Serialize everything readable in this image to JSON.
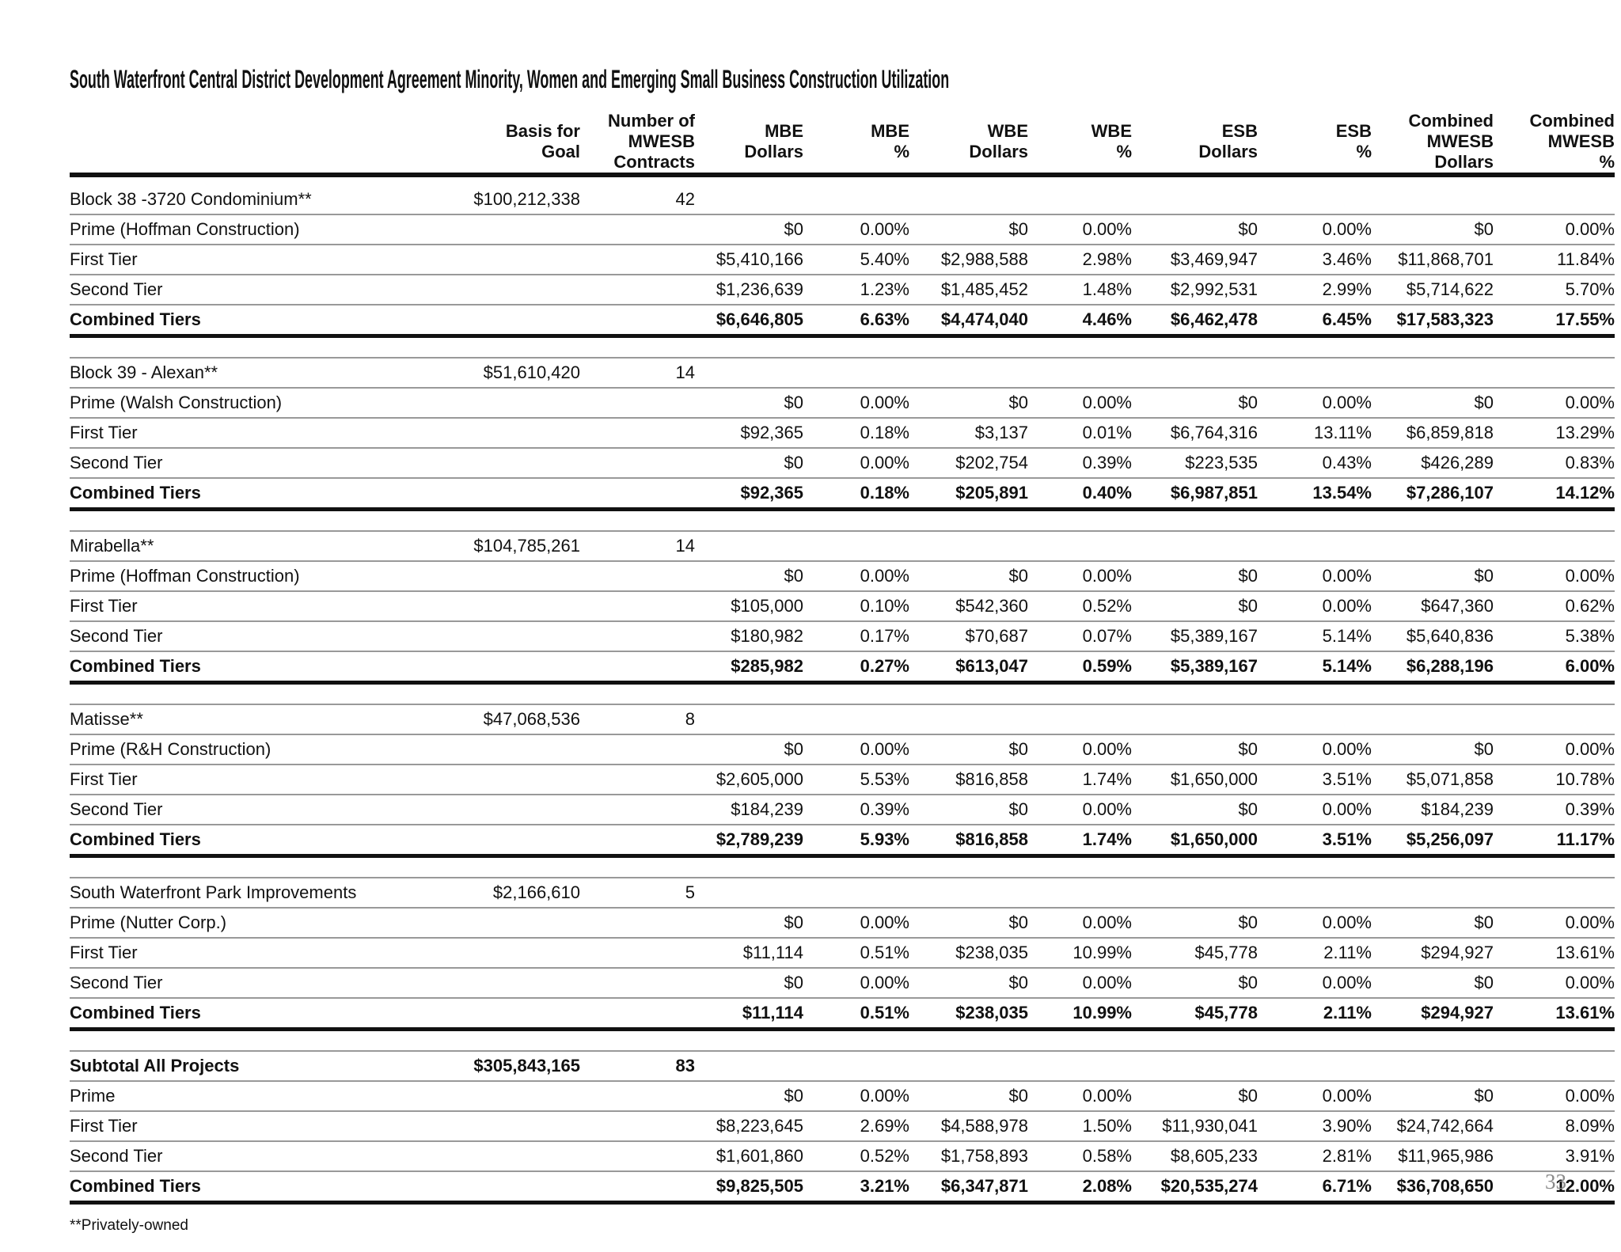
{
  "page": {
    "title": "South Waterfront Central District Development Agreement Minority, Women and Emerging Small Business Construction Utilization",
    "footnote": "**Privately-owned",
    "page_number": "33"
  },
  "colors": {
    "rule_dark": "#111111",
    "rule_gray": "#999999",
    "page_number_gray": "#8a8a8a",
    "background": "#ffffff"
  },
  "columns": [
    {
      "id": "basis",
      "lines": [
        "Basis for",
        "Goal"
      ]
    },
    {
      "id": "contracts",
      "lines": [
        "Number of",
        "MWESB",
        "Contracts"
      ]
    },
    {
      "id": "mbe_dollars",
      "lines": [
        "MBE",
        "Dollars"
      ]
    },
    {
      "id": "mbe_pct",
      "lines": [
        "MBE",
        "%"
      ]
    },
    {
      "id": "wbe_dollars",
      "lines": [
        "WBE",
        "Dollars"
      ]
    },
    {
      "id": "wbe_pct",
      "lines": [
        "WBE",
        "%"
      ]
    },
    {
      "id": "esb_dollars",
      "lines": [
        "ESB",
        "Dollars"
      ]
    },
    {
      "id": "esb_pct",
      "lines": [
        "ESB",
        "%"
      ]
    },
    {
      "id": "combined_dollars",
      "lines": [
        "Combined",
        "MWESB",
        "Dollars"
      ]
    },
    {
      "id": "combined_pct",
      "lines": [
        "Combined",
        "MWESB",
        "%"
      ]
    }
  ],
  "projects": [
    {
      "name": "Block 38 -3720 Condominium**",
      "basis": "$100,212,338",
      "contracts": "42",
      "rows": [
        {
          "label": "Prime (Hoffman Construction)",
          "values": [
            "$0",
            "0.00%",
            "$0",
            "0.00%",
            "$0",
            "0.00%",
            "$0",
            "0.00%"
          ]
        },
        {
          "label": "First Tier",
          "values": [
            "$5,410,166",
            "5.40%",
            "$2,988,588",
            "2.98%",
            "$3,469,947",
            "3.46%",
            "$11,868,701",
            "11.84%"
          ]
        },
        {
          "label": "Second Tier",
          "values": [
            "$1,236,639",
            "1.23%",
            "$1,485,452",
            "1.48%",
            "$2,992,531",
            "2.99%",
            "$5,714,622",
            "5.70%"
          ]
        },
        {
          "label": "Combined Tiers",
          "values": [
            "$6,646,805",
            "6.63%",
            "$4,474,040",
            "4.46%",
            "$6,462,478",
            "6.45%",
            "$17,583,323",
            "17.55%"
          ]
        }
      ]
    },
    {
      "name": "Block 39 - Alexan**",
      "basis": "$51,610,420",
      "contracts": "14",
      "rows": [
        {
          "label": "Prime (Walsh Construction)",
          "values": [
            "$0",
            "0.00%",
            "$0",
            "0.00%",
            "$0",
            "0.00%",
            "$0",
            "0.00%"
          ]
        },
        {
          "label": "First Tier",
          "values": [
            "$92,365",
            "0.18%",
            "$3,137",
            "0.01%",
            "$6,764,316",
            "13.11%",
            "$6,859,818",
            "13.29%"
          ]
        },
        {
          "label": "Second Tier",
          "values": [
            "$0",
            "0.00%",
            "$202,754",
            "0.39%",
            "$223,535",
            "0.43%",
            "$426,289",
            "0.83%"
          ]
        },
        {
          "label": "Combined Tiers",
          "values": [
            "$92,365",
            "0.18%",
            "$205,891",
            "0.40%",
            "$6,987,851",
            "13.54%",
            "$7,286,107",
            "14.12%"
          ]
        }
      ]
    },
    {
      "name": "Mirabella**",
      "basis": "$104,785,261",
      "contracts": "14",
      "rows": [
        {
          "label": "Prime (Hoffman Construction)",
          "values": [
            "$0",
            "0.00%",
            "$0",
            "0.00%",
            "$0",
            "0.00%",
            "$0",
            "0.00%"
          ]
        },
        {
          "label": "First Tier",
          "values": [
            "$105,000",
            "0.10%",
            "$542,360",
            "0.52%",
            "$0",
            "0.00%",
            "$647,360",
            "0.62%"
          ]
        },
        {
          "label": "Second Tier",
          "values": [
            "$180,982",
            "0.17%",
            "$70,687",
            "0.07%",
            "$5,389,167",
            "5.14%",
            "$5,640,836",
            "5.38%"
          ]
        },
        {
          "label": "Combined Tiers",
          "values": [
            "$285,982",
            "0.27%",
            "$613,047",
            "0.59%",
            "$5,389,167",
            "5.14%",
            "$6,288,196",
            "6.00%"
          ]
        }
      ]
    },
    {
      "name": "Matisse**",
      "basis": "$47,068,536",
      "contracts": "8",
      "rows": [
        {
          "label": "Prime (R&H Construction)",
          "values": [
            "$0",
            "0.00%",
            "$0",
            "0.00%",
            "$0",
            "0.00%",
            "$0",
            "0.00%"
          ]
        },
        {
          "label": "First Tier",
          "values": [
            "$2,605,000",
            "5.53%",
            "$816,858",
            "1.74%",
            "$1,650,000",
            "3.51%",
            "$5,071,858",
            "10.78%"
          ]
        },
        {
          "label": "Second Tier",
          "values": [
            "$184,239",
            "0.39%",
            "$0",
            "0.00%",
            "$0",
            "0.00%",
            "$184,239",
            "0.39%"
          ]
        },
        {
          "label": "Combined Tiers",
          "values": [
            "$2,789,239",
            "5.93%",
            "$816,858",
            "1.74%",
            "$1,650,000",
            "3.51%",
            "$5,256,097",
            "11.17%"
          ]
        }
      ]
    },
    {
      "name": "South Waterfront Park Improvements",
      "basis": "$2,166,610",
      "contracts": "5",
      "rows": [
        {
          "label": "Prime (Nutter Corp.)",
          "values": [
            "$0",
            "0.00%",
            "$0",
            "0.00%",
            "$0",
            "0.00%",
            "$0",
            "0.00%"
          ]
        },
        {
          "label": "First Tier",
          "values": [
            "$11,114",
            "0.51%",
            "$238,035",
            "10.99%",
            "$45,778",
            "2.11%",
            "$294,927",
            "13.61%"
          ]
        },
        {
          "label": "Second Tier",
          "values": [
            "$0",
            "0.00%",
            "$0",
            "0.00%",
            "$0",
            "0.00%",
            "$0",
            "0.00%"
          ]
        },
        {
          "label": "Combined Tiers",
          "values": [
            "$11,114",
            "0.51%",
            "$238,035",
            "10.99%",
            "$45,778",
            "2.11%",
            "$294,927",
            "13.61%"
          ]
        }
      ]
    },
    {
      "name": "Subtotal All Projects",
      "basis": "$305,843,165",
      "contracts": "83",
      "rows": [
        {
          "label": "Prime",
          "values": [
            "$0",
            "0.00%",
            "$0",
            "0.00%",
            "$0",
            "0.00%",
            "$0",
            "0.00%"
          ]
        },
        {
          "label": "First Tier",
          "values": [
            "$8,223,645",
            "2.69%",
            "$4,588,978",
            "1.50%",
            "$11,930,041",
            "3.90%",
            "$24,742,664",
            "8.09%"
          ]
        },
        {
          "label": "Second Tier",
          "values": [
            "$1,601,860",
            "0.52%",
            "$1,758,893",
            "0.58%",
            "$8,605,233",
            "2.81%",
            "$11,965,986",
            "3.91%"
          ]
        },
        {
          "label": "Combined Tiers",
          "values": [
            "$9,825,505",
            "3.21%",
            "$6,347,871",
            "2.08%",
            "$20,535,274",
            "6.71%",
            "$36,708,650",
            "12.00%"
          ]
        }
      ]
    }
  ]
}
